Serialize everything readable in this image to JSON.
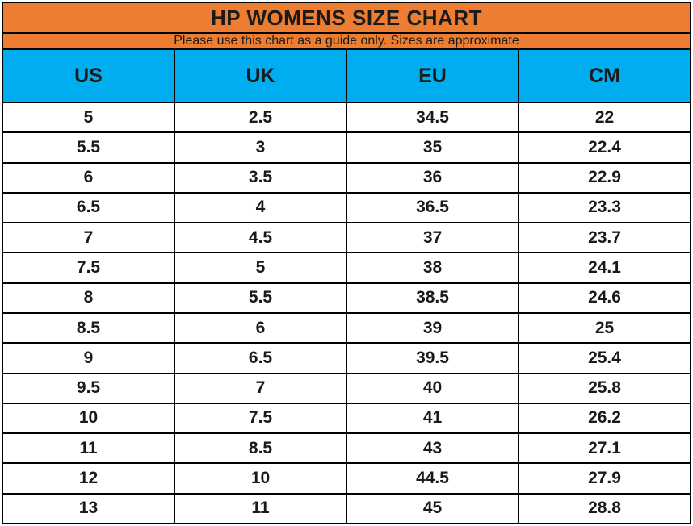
{
  "title": "HP WOMENS SIZE CHART",
  "subtitle": "Please use this chart as a guide only. Sizes are approximate",
  "colors": {
    "title_band": "#ED7D31",
    "column_header_band": "#00AEEF",
    "grid_border": "#000000",
    "text": "#1A1A1A",
    "row_background": "#FFFFFF"
  },
  "chart_data": {
    "type": "table",
    "title": "HP WOMENS SIZE CHART",
    "subtitle": "Please use this chart as a guide only. Sizes are approximate",
    "columns": [
      "US",
      "UK",
      "EU",
      "CM"
    ],
    "rows": [
      [
        "5",
        "2.5",
        "34.5",
        "22"
      ],
      [
        "5.5",
        "3",
        "35",
        "22.4"
      ],
      [
        "6",
        "3.5",
        "36",
        "22.9"
      ],
      [
        "6.5",
        "4",
        "36.5",
        "23.3"
      ],
      [
        "7",
        "4.5",
        "37",
        "23.7"
      ],
      [
        "7.5",
        "5",
        "38",
        "24.1"
      ],
      [
        "8",
        "5.5",
        "38.5",
        "24.6"
      ],
      [
        "8.5",
        "6",
        "39",
        "25"
      ],
      [
        "9",
        "6.5",
        "39.5",
        "25.4"
      ],
      [
        "9.5",
        "7",
        "40",
        "25.8"
      ],
      [
        "10",
        "7.5",
        "41",
        "26.2"
      ],
      [
        "11",
        "8.5",
        "43",
        "27.1"
      ],
      [
        "12",
        "10",
        "44.5",
        "27.9"
      ],
      [
        "13",
        "11",
        "45",
        "28.8"
      ]
    ]
  }
}
